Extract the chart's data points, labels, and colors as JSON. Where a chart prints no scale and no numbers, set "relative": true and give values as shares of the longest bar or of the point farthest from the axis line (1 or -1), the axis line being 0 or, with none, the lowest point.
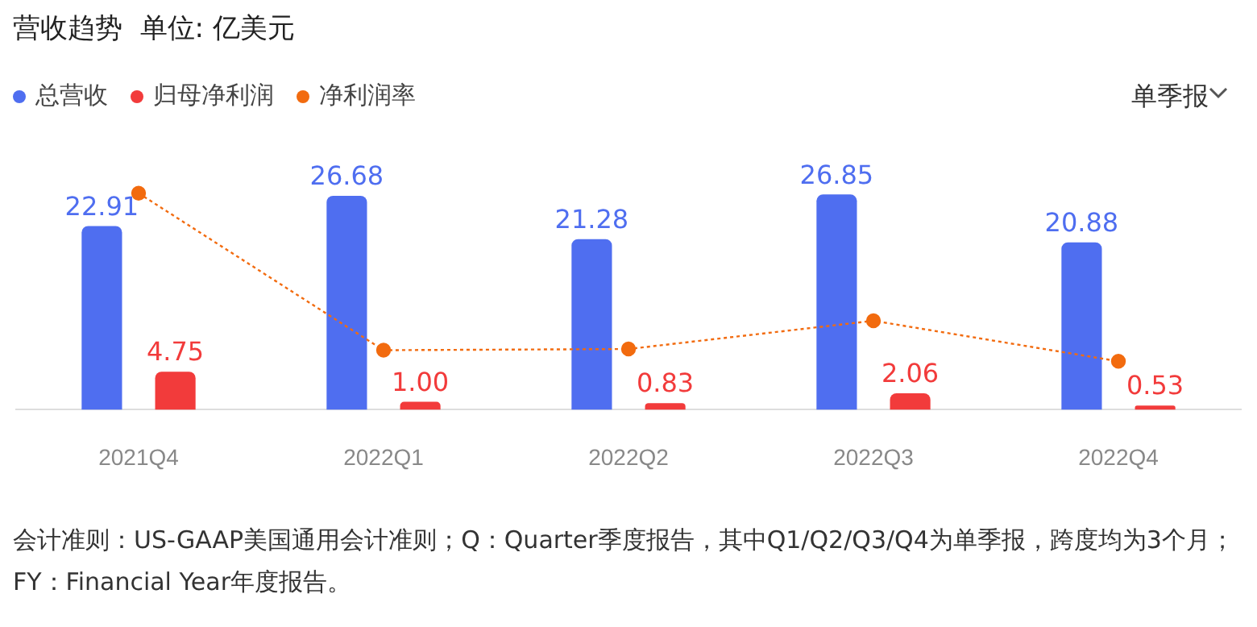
{
  "chart_data": [
    {
      "type": "bar",
      "title": "营收趋势  单位: 亿美元",
      "categories": [
        "2021Q4",
        "2022Q1",
        "2022Q2",
        "2022Q3",
        "2022Q4"
      ],
      "series": [
        {
          "name": "总营收",
          "color": "#4f6ef0",
          "values": [
            22.91,
            26.68,
            21.28,
            26.85,
            20.88
          ],
          "value_labels": [
            "22.91",
            "26.68",
            "21.28",
            "26.85",
            "20.88"
          ]
        },
        {
          "name": "归母净利润",
          "color": "#f23b3b",
          "values": [
            4.75,
            1.0,
            0.83,
            2.06,
            0.53
          ],
          "value_labels": [
            "4.75",
            "1.00",
            "0.83",
            "2.06",
            "0.53"
          ]
        }
      ],
      "legend": "top left",
      "grid": false,
      "tick_labels": "x",
      "annotations": [
        "单季报",
        "会计准则：US-GAAP美国通用会计准则；Q：Quarter季度报告，其中Q1/Q2/Q3/Q4为单季报，跨度均为3个月；FY：Financial Year年度报告。"
      ]
    },
    {
      "type": "line",
      "categories": [
        null,
        null,
        null,
        null,
        null
      ],
      "relative": true,
      "tick_labels": false,
      "legend": "top left",
      "line_style": "dotted",
      "marker": "circle",
      "series": [
        {
          "name": "净利润率",
          "color": "#f26b0f",
          "values": [
            1,
            0.066,
            0.073,
            0.241,
            0
          ]
        }
      ]
    }
  ]
}
